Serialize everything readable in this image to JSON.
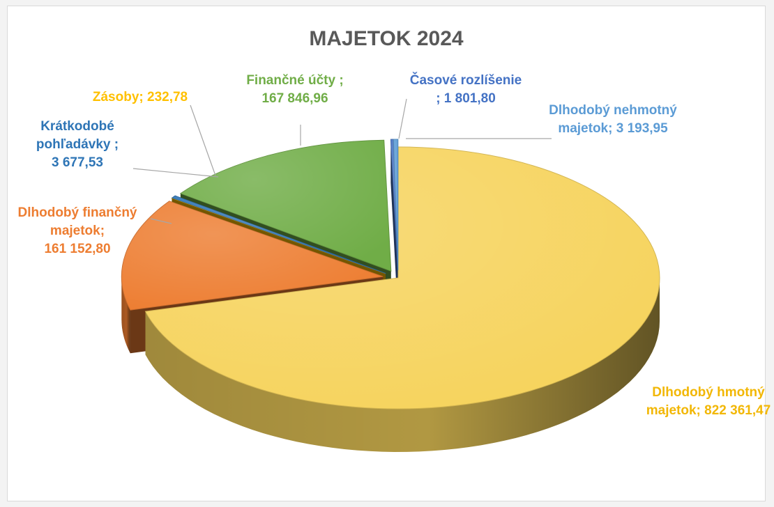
{
  "chart_data": {
    "type": "pie",
    "title": "MAJETOK 2024",
    "categories": [
      "Dlhodobý hmotný majetok",
      "Dlhodobý finančný majetok",
      "Zásoby",
      "Krátkodobé pohľadávky",
      "Finančné účty",
      "Časové rozlíšenie",
      "Dlhodobý nehmotný majetok"
    ],
    "values": [
      822361.47,
      161152.8,
      232.78,
      3677.53,
      167846.96,
      1801.8,
      3193.95
    ],
    "slices": [
      {
        "name": "Dlhodobý hmotný majetok",
        "value": 822361.47,
        "label_lines": [
          "Dlhodobý hmotný",
          "majetok; 822 361,47"
        ],
        "color": "#f6d35c",
        "label_color": "#f2b705",
        "exploded": false
      },
      {
        "name": "Dlhodobý finančný majetok",
        "value": 161152.8,
        "label_lines": [
          "Dlhodobý finančný",
          "majetok;",
          "161 152,80"
        ],
        "color": "#ed7d31",
        "label_color": "#ed7d31",
        "exploded": true
      },
      {
        "name": "Zásoby",
        "value": 232.78,
        "label_lines": [
          "Zásoby; 232,78"
        ],
        "color": "#ffc000",
        "label_color": "#ffc000",
        "exploded": true
      },
      {
        "name": "Krátkodobé pohľadávky",
        "value": 3677.53,
        "label_lines": [
          "Krátkodobé",
          "pohľadávky ;",
          "3 677,53"
        ],
        "color": "#2e75b6",
        "label_color": "#2e75b6",
        "exploded": true
      },
      {
        "name": "Finančné účty",
        "value": 167846.96,
        "label_lines": [
          "Finančné účty ;",
          "167 846,96"
        ],
        "color": "#70ad47",
        "label_color": "#70ad47",
        "exploded": true
      },
      {
        "name": "Časové rozlíšenie",
        "value": 1801.8,
        "label_lines": [
          "Časové rozlíšenie",
          "; 1 801,80"
        ],
        "color": "#4472c4",
        "label_color": "#4472c4",
        "exploded": true
      },
      {
        "name": "Dlhodobý nehmotný majetok",
        "value": 3193.95,
        "label_lines": [
          "Dlhodobý nehmotný",
          "majetok; 3 193,95"
        ],
        "color": "#5b9bd5",
        "label_color": "#5b9bd5",
        "exploded": true
      }
    ],
    "style": "3d-exploded-pie",
    "legend": "none",
    "data_labels": "category; value"
  }
}
